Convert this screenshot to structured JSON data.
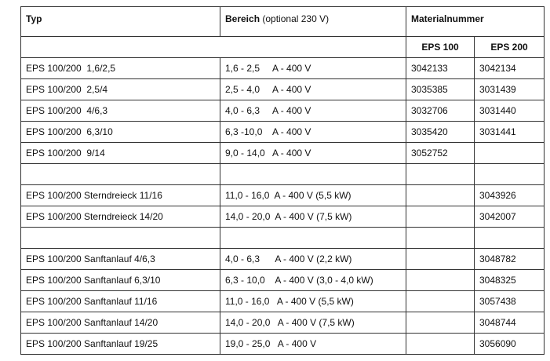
{
  "header": {
    "typ": "Typ",
    "bereich": {
      "label": "Bereich",
      "note": "(optional 230 V)"
    },
    "materialnummer": "Materialnummer",
    "eps100": "EPS 100",
    "eps200": "EPS 200"
  },
  "table": {
    "rows": [
      [
        "EPS 100/200  1,6/2,5",
        "1,6 - 2,5     A - 400 V",
        "3042133",
        "3042134"
      ],
      [
        "EPS 100/200  2,5/4",
        "2,5 - 4,0     A - 400 V",
        "3035385",
        "3031439"
      ],
      [
        "EPS 100/200  4/6,3",
        "4,0 - 6,3     A - 400 V",
        "3032706",
        "3031440"
      ],
      [
        "EPS 100/200  6,3/10",
        "6,3 -10,0    A - 400 V",
        "3035420",
        "3031441"
      ],
      [
        "EPS 100/200  9/14",
        "9,0 - 14,0   A - 400 V",
        "3052752",
        null
      ],
      [
        null,
        null,
        null,
        null
      ],
      [
        "EPS 100/200 Sterndreieck 11/16",
        "11,0 - 16,0  A - 400 V (5,5 kW)",
        null,
        "3043926"
      ],
      [
        "EPS 100/200 Sterndreieck 14/20",
        "14,0 - 20,0  A - 400 V (7,5 kW)",
        null,
        "3042007"
      ],
      [
        null,
        null,
        null,
        null
      ],
      [
        "EPS 100/200 Sanftanlauf 4/6,3",
        "4,0 - 6,3      A - 400 V (2,2 kW)",
        null,
        "3048782"
      ],
      [
        "EPS 100/200 Sanftanlauf 6,3/10",
        "6,3 - 10,0    A - 400 V (3,0 - 4,0 kW)",
        null,
        "3048325"
      ],
      [
        "EPS 100/200 Sanftanlauf 11/16",
        "11,0 - 16,0   A - 400 V (5,5 kW)",
        null,
        "3057438"
      ],
      [
        "EPS 100/200 Sanftanlauf 14/20",
        "14,0 - 20,0   A - 400 V (7,5 kW)",
        null,
        "3048744"
      ],
      [
        "EPS 100/200 Sanftanlauf 19/25",
        "19,0 - 25,0   A - 400 V",
        null,
        "3056090"
      ]
    ]
  }
}
